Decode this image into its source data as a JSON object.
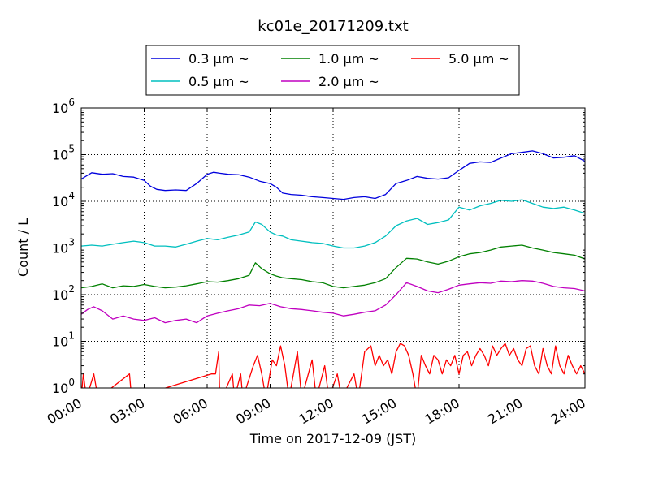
{
  "chart_data": {
    "type": "line",
    "title": "kc01e_20171209.txt",
    "xlabel": "Time on 2017-12-09 (JST)",
    "ylabel": "Count / L",
    "x_ticks": [
      "00:00",
      "03:00",
      "06:00",
      "09:00",
      "12:00",
      "15:00",
      "18:00",
      "21:00",
      "24:00"
    ],
    "x_range_hours": [
      0,
      24
    ],
    "y_scale": "log",
    "y_ticks": [
      {
        "base": "10",
        "exp": "0"
      },
      {
        "base": "10",
        "exp": "1"
      },
      {
        "base": "10",
        "exp": "2"
      },
      {
        "base": "10",
        "exp": "3"
      },
      {
        "base": "10",
        "exp": "4"
      },
      {
        "base": "10",
        "exp": "5"
      },
      {
        "base": "10",
        "exp": "6"
      }
    ],
    "ylim": [
      1,
      1000000
    ],
    "grid": true,
    "legend_position": "top-center",
    "series": [
      {
        "name": "0.3 μm ~",
        "color": "#0000dd",
        "points": [
          [
            0,
            30000
          ],
          [
            0.5,
            41000
          ],
          [
            1,
            38000
          ],
          [
            1.5,
            39000
          ],
          [
            2,
            34000
          ],
          [
            2.5,
            33000
          ],
          [
            3,
            28000
          ],
          [
            3.3,
            21000
          ],
          [
            3.6,
            18000
          ],
          [
            4,
            17000
          ],
          [
            4.5,
            17500
          ],
          [
            5,
            17000
          ],
          [
            5.5,
            24000
          ],
          [
            6,
            38000
          ],
          [
            6.3,
            42000
          ],
          [
            6.6,
            40000
          ],
          [
            7,
            38000
          ],
          [
            7.5,
            37000
          ],
          [
            8,
            33000
          ],
          [
            8.5,
            27000
          ],
          [
            9,
            24000
          ],
          [
            9.3,
            20000
          ],
          [
            9.6,
            15000
          ],
          [
            10,
            14000
          ],
          [
            10.5,
            13500
          ],
          [
            11,
            12500
          ],
          [
            11.5,
            12000
          ],
          [
            12,
            11500
          ],
          [
            12.5,
            11000
          ],
          [
            13,
            12000
          ],
          [
            13.5,
            12500
          ],
          [
            14,
            11500
          ],
          [
            14.5,
            14000
          ],
          [
            15,
            24000
          ],
          [
            15.5,
            28000
          ],
          [
            16,
            34000
          ],
          [
            16.5,
            31000
          ],
          [
            17,
            30000
          ],
          [
            17.5,
            32000
          ],
          [
            18,
            46000
          ],
          [
            18.5,
            65000
          ],
          [
            19,
            70000
          ],
          [
            19.5,
            68000
          ],
          [
            20,
            85000
          ],
          [
            20.5,
            105000
          ],
          [
            21,
            112000
          ],
          [
            21.5,
            120000
          ],
          [
            22,
            105000
          ],
          [
            22.5,
            85000
          ],
          [
            23,
            88000
          ],
          [
            23.5,
            95000
          ],
          [
            24,
            72000
          ]
        ]
      },
      {
        "name": "0.5 μm ~",
        "color": "#00bfbf",
        "points": [
          [
            0,
            1100
          ],
          [
            0.5,
            1150
          ],
          [
            1,
            1100
          ],
          [
            1.5,
            1200
          ],
          [
            2,
            1300
          ],
          [
            2.5,
            1400
          ],
          [
            3,
            1300
          ],
          [
            3.5,
            1100
          ],
          [
            4,
            1100
          ],
          [
            4.5,
            1050
          ],
          [
            5,
            1200
          ],
          [
            5.5,
            1400
          ],
          [
            6,
            1600
          ],
          [
            6.5,
            1500
          ],
          [
            7,
            1700
          ],
          [
            7.5,
            1900
          ],
          [
            8,
            2200
          ],
          [
            8.3,
            3600
          ],
          [
            8.6,
            3200
          ],
          [
            9,
            2200
          ],
          [
            9.3,
            1900
          ],
          [
            9.6,
            1800
          ],
          [
            10,
            1500
          ],
          [
            10.5,
            1400
          ],
          [
            11,
            1300
          ],
          [
            11.5,
            1250
          ],
          [
            12,
            1100
          ],
          [
            12.5,
            1000
          ],
          [
            13,
            1000
          ],
          [
            13.5,
            1100
          ],
          [
            14,
            1300
          ],
          [
            14.5,
            1800
          ],
          [
            15,
            3000
          ],
          [
            15.5,
            3800
          ],
          [
            16,
            4300
          ],
          [
            16.5,
            3200
          ],
          [
            17,
            3500
          ],
          [
            17.5,
            4000
          ],
          [
            18,
            7500
          ],
          [
            18.5,
            6500
          ],
          [
            19,
            8000
          ],
          [
            19.5,
            9000
          ],
          [
            20,
            10500
          ],
          [
            20.5,
            10000
          ],
          [
            21,
            10800
          ],
          [
            21.5,
            9000
          ],
          [
            22,
            7500
          ],
          [
            22.5,
            7000
          ],
          [
            23,
            7500
          ],
          [
            23.5,
            6500
          ],
          [
            24,
            5500
          ]
        ]
      },
      {
        "name": "1.0 μm ~",
        "color": "#008000",
        "points": [
          [
            0,
            140
          ],
          [
            0.5,
            150
          ],
          [
            1,
            170
          ],
          [
            1.5,
            140
          ],
          [
            2,
            155
          ],
          [
            2.5,
            150
          ],
          [
            3,
            165
          ],
          [
            3.5,
            150
          ],
          [
            4,
            140
          ],
          [
            4.5,
            145
          ],
          [
            5,
            155
          ],
          [
            5.5,
            170
          ],
          [
            6,
            190
          ],
          [
            6.5,
            185
          ],
          [
            7,
            200
          ],
          [
            7.5,
            220
          ],
          [
            8,
            260
          ],
          [
            8.3,
            480
          ],
          [
            8.6,
            360
          ],
          [
            9,
            280
          ],
          [
            9.3,
            250
          ],
          [
            9.6,
            230
          ],
          [
            10,
            220
          ],
          [
            10.5,
            210
          ],
          [
            11,
            190
          ],
          [
            11.5,
            180
          ],
          [
            12,
            150
          ],
          [
            12.5,
            140
          ],
          [
            13,
            150
          ],
          [
            13.5,
            160
          ],
          [
            14,
            180
          ],
          [
            14.5,
            220
          ],
          [
            15,
            380
          ],
          [
            15.5,
            600
          ],
          [
            16,
            580
          ],
          [
            16.5,
            500
          ],
          [
            17,
            450
          ],
          [
            17.5,
            520
          ],
          [
            18,
            650
          ],
          [
            18.5,
            750
          ],
          [
            19,
            800
          ],
          [
            19.5,
            900
          ],
          [
            20,
            1050
          ],
          [
            20.5,
            1100
          ],
          [
            21,
            1150
          ],
          [
            21.5,
            1000
          ],
          [
            22,
            900
          ],
          [
            22.5,
            800
          ],
          [
            23,
            750
          ],
          [
            23.5,
            700
          ],
          [
            24,
            580
          ]
        ]
      },
      {
        "name": "2.0 μm ~",
        "color": "#c000c0",
        "points": [
          [
            0,
            38
          ],
          [
            0.3,
            48
          ],
          [
            0.6,
            55
          ],
          [
            1,
            45
          ],
          [
            1.5,
            30
          ],
          [
            2,
            35
          ],
          [
            2.5,
            30
          ],
          [
            3,
            28
          ],
          [
            3.5,
            32
          ],
          [
            4,
            25
          ],
          [
            4.5,
            28
          ],
          [
            5,
            30
          ],
          [
            5.5,
            25
          ],
          [
            6,
            35
          ],
          [
            6.5,
            40
          ],
          [
            7,
            45
          ],
          [
            7.5,
            50
          ],
          [
            8,
            60
          ],
          [
            8.5,
            58
          ],
          [
            9,
            65
          ],
          [
            9.5,
            55
          ],
          [
            10,
            50
          ],
          [
            10.5,
            48
          ],
          [
            11,
            45
          ],
          [
            11.5,
            42
          ],
          [
            12,
            40
          ],
          [
            12.5,
            35
          ],
          [
            13,
            38
          ],
          [
            13.5,
            42
          ],
          [
            14,
            45
          ],
          [
            14.5,
            60
          ],
          [
            15,
            100
          ],
          [
            15.5,
            180
          ],
          [
            16,
            150
          ],
          [
            16.5,
            120
          ],
          [
            17,
            110
          ],
          [
            17.5,
            130
          ],
          [
            18,
            160
          ],
          [
            18.5,
            170
          ],
          [
            19,
            180
          ],
          [
            19.5,
            175
          ],
          [
            20,
            195
          ],
          [
            20.5,
            190
          ],
          [
            21,
            200
          ],
          [
            21.5,
            195
          ],
          [
            22,
            175
          ],
          [
            22.5,
            150
          ],
          [
            23,
            140
          ],
          [
            23.5,
            135
          ],
          [
            24,
            120
          ]
        ]
      },
      {
        "name": "5.0 μm ~",
        "color": "#ff0000",
        "points": [
          [
            0,
            0.6
          ],
          [
            0.1,
            2
          ],
          [
            0.25,
            0.6
          ],
          [
            0.6,
            2
          ],
          [
            0.8,
            0.6
          ],
          [
            2.3,
            2
          ],
          [
            2.4,
            0.6
          ],
          [
            6.2,
            2
          ],
          [
            6.4,
            2
          ],
          [
            6.6,
            0.6
          ],
          [
            6.55,
            6
          ],
          [
            6.7,
            0.6
          ],
          [
            7.2,
            2
          ],
          [
            7.3,
            0.6
          ],
          [
            7.6,
            2
          ],
          [
            7.7,
            0.6
          ],
          [
            8.2,
            3
          ],
          [
            8.4,
            5
          ],
          [
            8.6,
            2
          ],
          [
            8.8,
            0.6
          ],
          [
            9.1,
            4
          ],
          [
            9.3,
            3
          ],
          [
            9.5,
            8
          ],
          [
            9.7,
            3
          ],
          [
            9.9,
            0.6
          ],
          [
            10.3,
            6
          ],
          [
            10.5,
            0.6
          ],
          [
            11,
            4
          ],
          [
            11.2,
            0.6
          ],
          [
            11.6,
            3
          ],
          [
            11.8,
            0.6
          ],
          [
            12.2,
            2
          ],
          [
            12.4,
            0.6
          ],
          [
            13,
            2
          ],
          [
            13.2,
            0.6
          ],
          [
            13.5,
            6
          ],
          [
            13.8,
            8
          ],
          [
            14,
            3
          ],
          [
            14.2,
            5
          ],
          [
            14.4,
            3
          ],
          [
            14.6,
            4
          ],
          [
            14.8,
            2
          ],
          [
            15,
            6
          ],
          [
            15.2,
            9
          ],
          [
            15.4,
            8
          ],
          [
            15.6,
            5
          ],
          [
            15.8,
            2
          ],
          [
            16,
            0.6
          ],
          [
            16.2,
            5
          ],
          [
            16.4,
            3
          ],
          [
            16.6,
            2
          ],
          [
            16.8,
            5
          ],
          [
            17,
            4
          ],
          [
            17.2,
            2
          ],
          [
            17.4,
            4
          ],
          [
            17.6,
            3
          ],
          [
            17.8,
            5
          ],
          [
            18,
            2
          ],
          [
            18.2,
            5
          ],
          [
            18.4,
            6
          ],
          [
            18.6,
            3
          ],
          [
            18.8,
            5
          ],
          [
            19,
            7
          ],
          [
            19.2,
            5
          ],
          [
            19.4,
            3
          ],
          [
            19.6,
            8
          ],
          [
            19.8,
            5
          ],
          [
            20,
            7
          ],
          [
            20.2,
            9
          ],
          [
            20.4,
            5
          ],
          [
            20.6,
            7
          ],
          [
            20.8,
            4
          ],
          [
            21,
            3
          ],
          [
            21.2,
            7
          ],
          [
            21.4,
            8
          ],
          [
            21.6,
            3
          ],
          [
            21.8,
            2
          ],
          [
            22,
            7
          ],
          [
            22.2,
            3
          ],
          [
            22.4,
            2
          ],
          [
            22.6,
            8
          ],
          [
            22.8,
            3
          ],
          [
            23,
            2
          ],
          [
            23.2,
            5
          ],
          [
            23.4,
            3
          ],
          [
            23.6,
            2
          ],
          [
            23.8,
            3
          ],
          [
            24,
            2
          ]
        ]
      }
    ]
  }
}
